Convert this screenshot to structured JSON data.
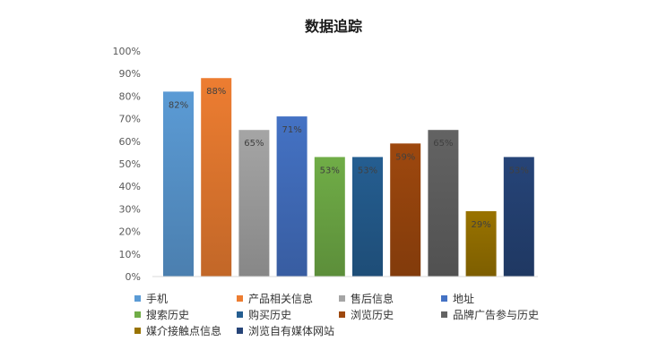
{
  "chart_data": {
    "type": "bar",
    "title": "数据追踪",
    "xlabel": "",
    "ylabel": "",
    "ylim": [
      0,
      100
    ],
    "y_ticks": [
      "0%",
      "10%",
      "20%",
      "30%",
      "40%",
      "50%",
      "60%",
      "70%",
      "80%",
      "90%",
      "100%"
    ],
    "categories": [
      "手机",
      "产品相关信息",
      "售后信息",
      "地址",
      "搜索历史",
      "购买历史",
      "浏览历史",
      "品牌广告参与历史",
      "媒介接触点信息",
      "浏览自有媒体网站"
    ],
    "values": [
      82,
      88,
      65,
      71,
      53,
      53,
      59,
      65,
      29,
      53
    ],
    "data_labels": [
      "82%",
      "88%",
      "65%",
      "71%",
      "53%",
      "53%",
      "59%",
      "65%",
      "29%",
      "53%"
    ],
    "colors": [
      "#5b9bd5",
      "#ed7d31",
      "#a5a5a5",
      "#4472c4",
      "#70ad47",
      "#255e91",
      "#9e480e",
      "#636363",
      "#997300",
      "#264478"
    ],
    "grid": false,
    "legend": "bottom"
  }
}
